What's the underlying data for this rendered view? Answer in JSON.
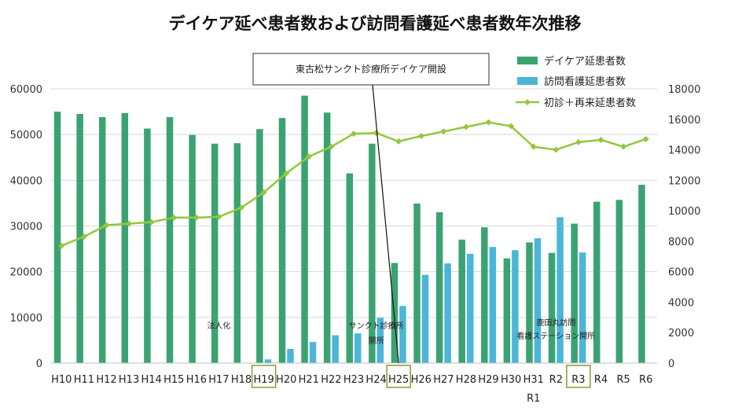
{
  "chart_data": {
    "type": "bar+line",
    "title": "デイケア延べ患者数および訪問看護延べ患者数年次推移",
    "categories": [
      "H10",
      "H11",
      "H12",
      "H13",
      "H14",
      "H15",
      "H16",
      "H17",
      "H18",
      "H19",
      "H20",
      "H21",
      "H22",
      "H23",
      "H24",
      "H25",
      "H26",
      "H27",
      "H28",
      "H29",
      "H30",
      "H31",
      "R2",
      "R3",
      "R4",
      "R5",
      "R6"
    ],
    "category_sublabels": {
      "H31": "R1"
    },
    "highlighted_categories": [
      "H19",
      "H25",
      "R3"
    ],
    "series": [
      {
        "name": "デイケア延患者数",
        "type": "bar",
        "axis": "left",
        "color": "#3BA372",
        "values": [
          55000,
          54500,
          53800,
          54700,
          51300,
          53800,
          49900,
          48000,
          48100,
          51200,
          53600,
          58500,
          54800,
          41500,
          48000,
          21900,
          34900,
          33000,
          27000,
          29700,
          22900,
          26400,
          24100,
          30500,
          35300,
          35700,
          39000
        ]
      },
      {
        "name": "訪問看護延患者数",
        "type": "bar",
        "axis": "left",
        "color": "#4BB6D8",
        "values": [
          null,
          null,
          null,
          null,
          null,
          null,
          null,
          null,
          null,
          800,
          3100,
          4600,
          6100,
          6500,
          9900,
          12500,
          19300,
          21800,
          23900,
          25400,
          24700,
          27300,
          31900,
          24200,
          null,
          null,
          null
        ]
      },
      {
        "name": "初診＋再来延患者数",
        "type": "line",
        "axis": "right",
        "color": "#92C83E",
        "values": [
          7700,
          8300,
          9050,
          9150,
          9250,
          9550,
          9550,
          9600,
          10200,
          11200,
          12450,
          13550,
          14200,
          15050,
          15100,
          14550,
          14900,
          15200,
          15500,
          15800,
          15550,
          14200,
          14000,
          14500,
          14650,
          14200,
          14700
        ]
      }
    ],
    "y_left": {
      "min": 0,
      "max": 60000,
      "ticks": [
        0,
        10000,
        20000,
        30000,
        40000,
        50000,
        60000
      ]
    },
    "y_right": {
      "min": 0,
      "max": 18000,
      "ticks": [
        0,
        2000,
        4000,
        6000,
        8000,
        10000,
        12000,
        14000,
        16000,
        18000
      ]
    },
    "gridlines": true,
    "legend_position": "top-right",
    "annotations": [
      {
        "category": "H17",
        "lines": [
          "法人化"
        ]
      },
      {
        "category": "H24",
        "lines": [
          "サンクト診療所",
          "開所"
        ]
      },
      {
        "category": "R2",
        "lines": [
          "鹿田丸訪問",
          "看護ステーション開所"
        ]
      }
    ],
    "callout": {
      "text": "東古松サンクト診療所デイケア開設",
      "points_to": "H25"
    }
  }
}
